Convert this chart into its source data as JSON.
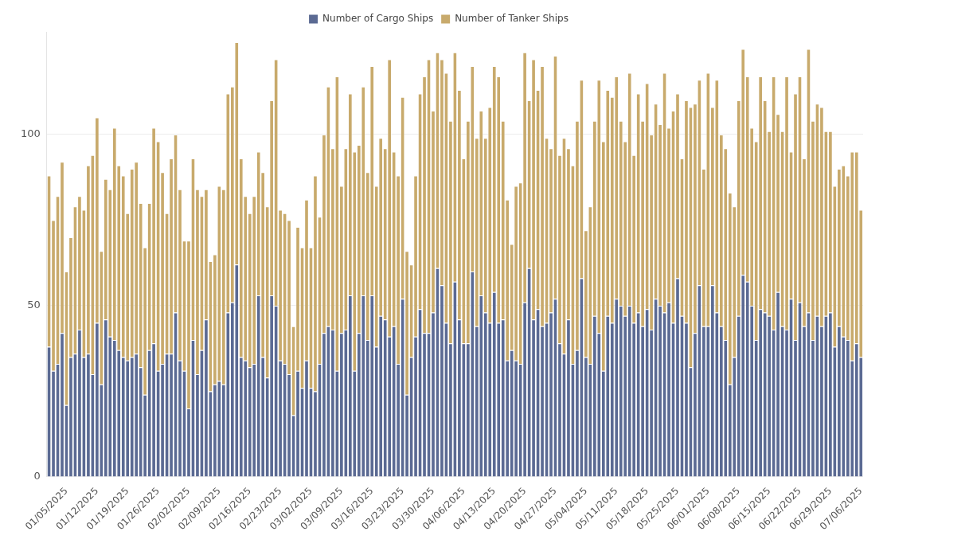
{
  "chart_data": {
    "type": "bar",
    "stacked": true,
    "grid": "y",
    "legend": "top",
    "ylim": [
      0,
      130
    ],
    "yticks": [
      0,
      50,
      100
    ],
    "categories": [
      null,
      null,
      null,
      null,
      "01/05/2025",
      null,
      null,
      null,
      null,
      null,
      null,
      "01/12/2025",
      null,
      null,
      null,
      null,
      null,
      null,
      "01/19/2025",
      null,
      null,
      null,
      null,
      null,
      null,
      "01/26/2025",
      null,
      null,
      null,
      null,
      null,
      null,
      "02/02/2025",
      null,
      null,
      null,
      null,
      null,
      null,
      "02/09/2025",
      null,
      null,
      null,
      null,
      null,
      null,
      "02/16/2025",
      null,
      null,
      null,
      null,
      null,
      null,
      "02/23/2025",
      null,
      null,
      null,
      null,
      null,
      null,
      "03/02/2025",
      null,
      null,
      null,
      null,
      null,
      null,
      "03/09/2025",
      null,
      null,
      null,
      null,
      null,
      null,
      "03/16/2025",
      null,
      null,
      null,
      null,
      null,
      null,
      "03/23/2025",
      null,
      null,
      null,
      null,
      null,
      null,
      "03/30/2025",
      null,
      null,
      null,
      null,
      null,
      null,
      "04/06/2025",
      null,
      null,
      null,
      null,
      null,
      null,
      "04/13/2025",
      null,
      null,
      null,
      null,
      null,
      null,
      "04/20/2025",
      null,
      null,
      null,
      null,
      null,
      null,
      "04/27/2025",
      null,
      null,
      null,
      null,
      null,
      null,
      "05/04/2025",
      null,
      null,
      null,
      null,
      null,
      null,
      "05/11/2025",
      null,
      null,
      null,
      null,
      null,
      null,
      "05/18/2025",
      null,
      null,
      null,
      null,
      null,
      null,
      "05/25/2025",
      null,
      null,
      null,
      null,
      null,
      null,
      "06/01/2025",
      null,
      null,
      null,
      null,
      null,
      null,
      "06/08/2025",
      null,
      null,
      null,
      null,
      null,
      null,
      "06/15/2025",
      null,
      null,
      null,
      null,
      null,
      null,
      "06/22/2025",
      null,
      null,
      null,
      null,
      null,
      null,
      "06/29/2025",
      null,
      null,
      null,
      null,
      null,
      null,
      "07/06/2025"
    ],
    "series": [
      {
        "name": "Number of Cargo Ships",
        "color": "#5b6a93",
        "values": [
          38,
          31,
          33,
          42,
          21,
          35,
          36,
          43,
          35,
          36,
          30,
          45,
          27,
          46,
          41,
          40,
          37,
          35,
          34,
          35,
          36,
          32,
          24,
          37,
          39,
          31,
          33,
          36,
          36,
          48,
          34,
          31,
          20,
          40,
          30,
          37,
          46,
          25,
          27,
          28,
          27,
          48,
          51,
          62,
          35,
          34,
          32,
          33,
          53,
          35,
          29,
          53,
          50,
          34,
          33,
          30,
          18,
          31,
          26,
          34,
          26,
          25,
          33,
          42,
          44,
          43,
          31,
          42,
          43,
          53,
          31,
          42,
          53,
          40,
          53,
          38,
          47,
          46,
          41,
          44,
          33,
          52,
          24,
          35,
          41,
          49,
          42,
          42,
          48,
          61,
          56,
          45,
          39,
          57,
          46,
          39,
          39,
          60,
          44,
          53,
          48,
          45,
          54,
          45,
          46,
          34,
          37,
          34,
          33,
          51,
          61,
          46,
          49,
          44,
          45,
          48,
          52,
          39,
          36,
          46,
          33,
          37,
          58,
          35,
          33,
          47,
          42,
          31,
          47,
          45,
          52,
          50,
          47,
          50,
          45,
          48,
          44,
          49,
          43,
          52,
          50,
          48,
          51,
          45,
          58,
          47,
          45,
          32,
          42,
          56,
          44,
          44,
          56,
          48,
          44,
          40,
          27,
          35,
          47,
          59,
          57,
          50,
          40,
          49,
          48,
          47,
          43,
          54,
          44,
          43,
          52,
          40,
          51,
          44,
          48,
          40,
          47,
          44,
          47,
          48,
          38,
          44,
          41,
          40,
          34,
          39,
          35
        ]
      },
      {
        "name": "Number of Tanker Ships",
        "color": "#c8aa6c",
        "values": [
          50,
          44,
          49,
          50,
          39,
          35,
          43,
          39,
          43,
          55,
          64,
          60,
          39,
          41,
          43,
          62,
          54,
          53,
          43,
          55,
          56,
          48,
          43,
          43,
          63,
          67,
          56,
          41,
          57,
          52,
          50,
          38,
          49,
          53,
          54,
          45,
          38,
          38,
          38,
          57,
          57,
          64,
          63,
          65,
          58,
          48,
          45,
          49,
          42,
          54,
          50,
          57,
          72,
          44,
          44,
          45,
          26,
          42,
          41,
          47,
          41,
          63,
          43,
          58,
          70,
          53,
          86,
          43,
          53,
          59,
          64,
          55,
          61,
          49,
          67,
          47,
          52,
          50,
          81,
          51,
          55,
          59,
          42,
          27,
          47,
          63,
          75,
          80,
          59,
          63,
          66,
          73,
          65,
          67,
          67,
          54,
          65,
          60,
          55,
          54,
          51,
          63,
          66,
          72,
          58,
          47,
          31,
          51,
          53,
          73,
          49,
          76,
          64,
          76,
          54,
          48,
          71,
          55,
          63,
          50,
          58,
          67,
          58,
          37,
          46,
          57,
          74,
          67,
          66,
          66,
          65,
          54,
          51,
          68,
          49,
          64,
          60,
          66,
          57,
          57,
          53,
          70,
          51,
          62,
          54,
          46,
          65,
          76,
          67,
          60,
          46,
          74,
          52,
          68,
          56,
          56,
          56,
          44,
          63,
          66,
          60,
          52,
          58,
          68,
          62,
          54,
          74,
          52,
          57,
          74,
          43,
          72,
          66,
          49,
          77,
          64,
          62,
          64,
          54,
          53,
          47,
          46,
          50,
          48,
          61,
          56,
          43
        ]
      }
    ]
  }
}
